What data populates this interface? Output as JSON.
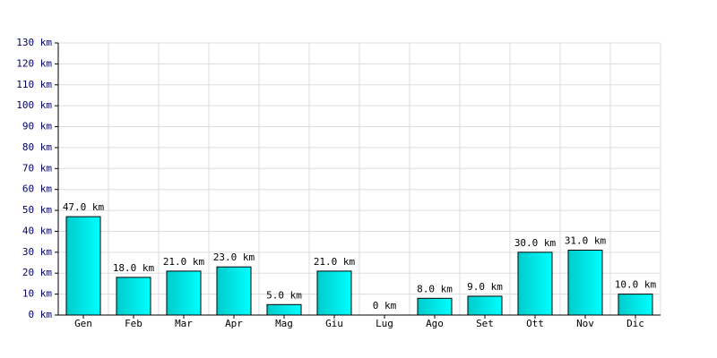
{
  "chart_data": {
    "type": "bar",
    "categories": [
      "Gen",
      "Feb",
      "Mar",
      "Apr",
      "Mag",
      "Giu",
      "Lug",
      "Ago",
      "Set",
      "Ott",
      "Nov",
      "Dic"
    ],
    "values": [
      47,
      18,
      21,
      23,
      5,
      21,
      0,
      8,
      9,
      30,
      31,
      10
    ],
    "value_labels": [
      "47.0 km",
      "18.0 km",
      "21.0 km",
      "23.0 km",
      "5.0 km",
      "21.0 km",
      "0 km",
      "8.0 km",
      "9.0 km",
      "30.0 km",
      "31.0 km",
      "10.0 km"
    ],
    "color": "#00cccc",
    "ylim": [
      0,
      130
    ],
    "yticks": [
      {
        "value": 0,
        "label": "0 km"
      },
      {
        "value": 10,
        "label": "10 km"
      },
      {
        "value": 20,
        "label": "20 km"
      },
      {
        "value": 30,
        "label": "30 km"
      },
      {
        "value": 40,
        "label": "40 km"
      },
      {
        "value": 50,
        "label": "50 km"
      },
      {
        "value": 60,
        "label": "60 km"
      },
      {
        "value": 70,
        "label": "70 km"
      },
      {
        "value": 80,
        "label": "80 km"
      },
      {
        "value": 90,
        "label": "90 km"
      },
      {
        "value": 100,
        "label": "100 km"
      },
      {
        "value": 110,
        "label": "110 km"
      },
      {
        "value": 120,
        "label": "120 km"
      },
      {
        "value": 130,
        "label": "130 km"
      }
    ],
    "grid": true
  }
}
